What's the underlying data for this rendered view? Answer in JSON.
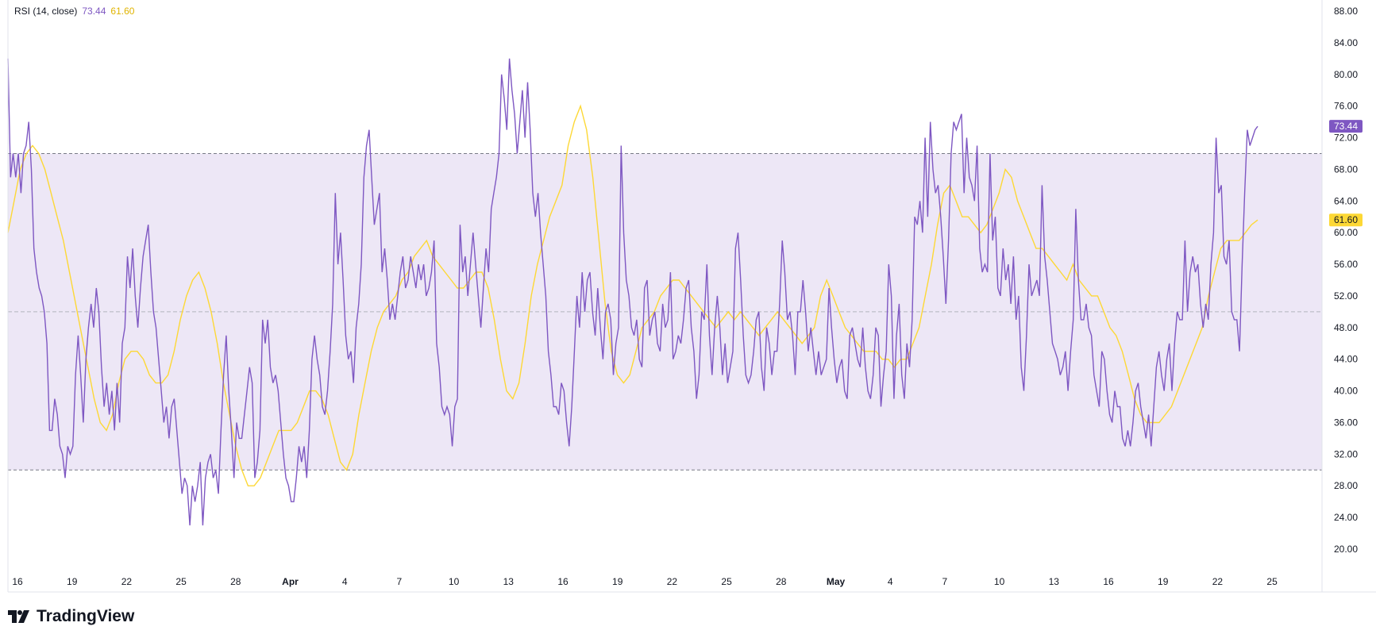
{
  "legend": {
    "name": "RSI (14, close)",
    "rsi_value": "73.44",
    "ma_value": "61.60"
  },
  "brand": {
    "name": "TradingView"
  },
  "colors": {
    "rsi": "#7e57c2",
    "ma": "#fdd835",
    "band": "#ede7f6",
    "overbought_fill": "#c8e6c9",
    "guide": "#787b86"
  },
  "chart_data": {
    "type": "line",
    "title": "RSI (14, close)",
    "ylim": [
      17,
      90
    ],
    "yticks": [
      "88.00",
      "84.00",
      "80.00",
      "76.00",
      "72.00",
      "68.00",
      "64.00",
      "60.00",
      "56.00",
      "52.00",
      "48.00",
      "44.00",
      "40.00",
      "36.00",
      "32.00",
      "28.00",
      "24.00",
      "20.00"
    ],
    "xticks": [
      "16",
      "19",
      "22",
      "25",
      "28",
      "Apr",
      "4",
      "7",
      "10",
      "13",
      "16",
      "19",
      "22",
      "25",
      "28",
      "May",
      "4",
      "7",
      "10",
      "13",
      "16",
      "19",
      "22",
      "25"
    ],
    "bands": {
      "upper": 70,
      "middle": 50,
      "lower": 30
    },
    "last_values": {
      "rsi": "73.44",
      "ma": "61.60"
    },
    "series": [
      {
        "name": "RSI",
        "values": [
          82,
          67,
          70,
          67,
          70,
          65,
          70,
          71,
          74,
          68,
          58,
          55,
          53,
          52,
          50,
          46,
          35,
          35,
          39,
          37,
          33,
          32,
          29,
          33,
          32,
          33,
          42,
          47,
          42,
          36,
          44,
          48,
          51,
          48,
          53,
          50,
          43,
          38,
          41,
          37,
          40,
          35,
          41,
          36,
          46,
          48,
          57,
          53,
          58,
          52,
          48,
          53,
          57,
          59,
          61,
          55,
          50,
          48,
          44,
          40,
          36,
          38,
          34,
          38,
          39,
          35,
          31,
          27,
          29,
          28,
          23,
          28,
          26,
          28,
          31,
          23,
          29,
          31,
          32,
          29,
          30,
          27,
          35,
          42,
          47,
          40,
          35,
          29,
          36,
          34,
          34,
          37,
          40,
          43,
          41,
          29,
          31,
          35,
          49,
          46,
          49,
          43,
          41,
          42,
          40,
          36,
          32,
          29,
          28,
          26,
          26,
          29,
          33,
          31,
          33,
          29,
          35,
          44,
          47,
          44,
          42,
          38,
          37,
          40,
          45,
          51,
          65,
          56,
          60,
          54,
          47,
          44,
          45,
          41,
          48,
          51,
          56,
          67,
          71,
          73,
          67,
          61,
          63,
          65,
          55,
          58,
          54,
          49,
          51,
          49,
          52,
          55,
          57,
          53,
          54,
          57,
          55,
          53,
          56,
          54,
          56,
          52,
          53,
          55,
          59,
          46,
          43,
          38,
          37,
          38,
          37,
          33,
          38,
          39,
          61,
          55,
          57,
          52,
          56,
          60,
          56,
          52,
          48,
          53,
          58,
          55,
          63,
          65,
          67,
          70,
          80,
          77,
          73,
          82,
          78,
          75,
          70,
          74,
          78,
          72,
          79,
          73,
          65,
          62,
          65,
          60,
          56,
          52,
          45,
          42,
          38,
          38,
          37,
          41,
          40,
          36,
          33,
          38,
          45,
          52,
          48,
          55,
          50,
          54,
          55,
          50,
          47,
          53,
          48,
          44,
          50,
          51,
          49,
          42,
          46,
          48,
          71,
          60,
          54,
          52,
          48,
          47,
          49,
          44,
          43,
          53,
          54,
          47,
          49,
          50,
          46,
          45,
          51,
          48,
          49,
          55,
          44,
          45,
          47,
          46,
          49,
          53,
          54,
          48,
          45,
          39,
          42,
          50,
          49,
          56,
          47,
          42,
          48,
          52,
          48,
          42,
          46,
          41,
          43,
          45,
          58,
          60,
          54,
          47,
          42,
          41,
          42,
          45,
          49,
          50,
          43,
          40,
          48,
          46,
          42,
          45,
          45,
          51,
          59,
          55,
          49,
          50,
          47,
          42,
          50,
          50,
          54,
          50,
          45,
          48,
          45,
          42,
          45,
          42,
          43,
          44,
          53,
          48,
          44,
          41,
          43,
          44,
          40,
          39,
          47,
          48,
          46,
          44,
          43,
          48,
          43,
          40,
          39,
          42,
          48,
          47,
          38,
          42,
          45,
          56,
          52,
          39,
          47,
          51,
          42,
          39,
          46,
          43,
          49,
          62,
          61,
          64,
          60,
          72,
          62,
          74,
          68,
          65,
          66,
          62,
          57,
          51,
          59,
          70,
          74,
          73,
          74,
          75,
          65,
          72,
          67,
          66,
          64,
          71,
          58,
          55,
          56,
          55,
          70,
          59,
          62,
          53,
          52,
          58,
          54,
          56,
          51,
          57,
          49,
          52,
          43,
          40,
          47,
          56,
          52,
          53,
          54,
          52,
          66,
          57,
          54,
          50,
          46,
          45,
          44,
          42,
          43,
          45,
          40,
          45,
          49,
          63,
          54,
          49,
          49,
          51,
          48,
          47,
          42,
          40,
          38,
          45,
          44,
          40,
          37,
          36,
          40,
          38,
          38,
          34,
          33,
          35,
          33,
          36,
          40,
          41,
          38,
          36,
          34,
          37,
          33,
          38,
          43,
          45,
          42,
          40,
          44,
          46,
          40,
          46,
          50,
          49,
          49,
          59,
          50,
          55,
          57,
          55,
          56,
          51,
          48,
          51,
          49,
          56,
          60,
          72,
          65,
          66,
          57,
          56,
          59,
          50,
          49,
          49,
          45,
          56,
          65,
          73,
          71,
          72,
          73,
          73.44
        ]
      },
      {
        "name": "MA",
        "values": [
          60,
          64,
          68,
          70,
          71,
          70,
          68,
          65,
          62,
          59,
          55,
          51,
          47,
          43,
          39,
          36,
          35,
          37,
          41,
          44,
          45,
          45,
          44,
          42,
          41,
          41,
          42,
          45,
          49,
          52,
          54,
          55,
          53,
          50,
          46,
          41,
          37,
          33,
          30,
          28,
          28,
          29,
          31,
          33,
          35,
          35,
          35,
          36,
          38,
          40,
          40,
          39,
          37,
          34,
          31,
          30,
          32,
          37,
          41,
          45,
          48,
          50,
          51,
          52,
          54,
          55,
          57,
          58,
          59,
          57,
          56,
          55,
          54,
          53,
          53,
          54,
          55,
          55,
          53,
          49,
          44,
          40,
          39,
          41,
          46,
          52,
          56,
          59,
          62,
          64,
          66,
          71,
          74,
          76,
          73,
          67,
          59,
          51,
          45,
          42,
          41,
          42,
          45,
          48,
          49,
          50,
          52,
          53,
          54,
          54,
          53,
          52,
          51,
          50,
          49,
          48,
          49,
          50,
          49,
          50,
          49,
          48,
          47,
          48,
          49,
          50,
          49,
          48,
          47,
          46,
          47,
          48,
          52,
          54,
          52,
          50,
          48,
          47,
          46,
          45,
          45,
          45,
          44,
          44,
          43,
          44,
          44,
          46,
          48,
          52,
          56,
          61,
          65,
          66,
          64,
          62,
          62,
          61,
          60,
          61,
          63,
          65,
          68,
          67,
          64,
          62,
          60,
          58,
          58,
          57,
          56,
          55,
          54,
          56,
          54,
          53,
          52,
          52,
          50,
          48,
          47,
          45,
          42,
          39,
          37,
          36,
          36,
          36,
          37,
          38,
          40,
          42,
          44,
          46,
          48,
          52,
          55,
          58,
          59,
          59,
          59,
          60,
          61,
          61.6
        ]
      }
    ]
  }
}
